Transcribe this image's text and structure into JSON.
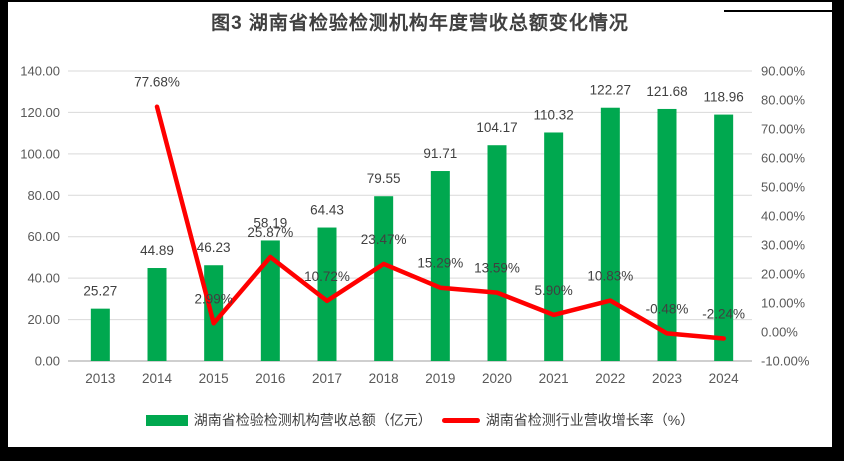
{
  "title": "图3 湖南省检验检测机构年度营收总额变化情况",
  "chart_data": {
    "type": "bar",
    "subtype": "combo-bar-line",
    "title": "图3 湖南省检验检测机构年度营收总额变化情况",
    "categories": [
      "2013",
      "2014",
      "2015",
      "2016",
      "2017",
      "2018",
      "2019",
      "2020",
      "2021",
      "2022",
      "2023",
      "2024"
    ],
    "series": [
      {
        "name": "湖南省检验检测机构营收总额（亿元）",
        "type": "bar",
        "axis": "left",
        "color": "#00A84F",
        "values": [
          25.27,
          44.89,
          46.23,
          58.19,
          64.43,
          79.55,
          91.71,
          104.17,
          110.32,
          122.27,
          121.68,
          118.96
        ],
        "labels": [
          "25.27",
          "44.89",
          "46.23",
          "58.19",
          "64.43",
          "79.55",
          "91.71",
          "104.17",
          "110.32",
          "122.27",
          "121.68",
          "118.96"
        ]
      },
      {
        "name": "湖南省检测行业营收增长率（%）",
        "type": "line",
        "axis": "right",
        "color": "#FF0000",
        "values": [
          null,
          77.68,
          2.99,
          25.87,
          10.72,
          23.47,
          15.29,
          13.59,
          5.9,
          10.83,
          -0.48,
          -2.24
        ],
        "labels": [
          "",
          "77.68%",
          "2.99%",
          "25.87%",
          "10.72%",
          "23.47%",
          "15.29%",
          "13.59%",
          "5.90%",
          "10.83%",
          "-0.48%",
          "-2.24%"
        ]
      }
    ],
    "left_axis": {
      "min": 0,
      "max": 140,
      "step": 20,
      "tick_labels": [
        "0.00",
        "20.00",
        "40.00",
        "60.00",
        "80.00",
        "100.00",
        "120.00",
        "140.00"
      ]
    },
    "right_axis": {
      "min": -10,
      "max": 90,
      "step": 10,
      "tick_labels": [
        "-10.00%",
        "0.00%",
        "10.00%",
        "20.00%",
        "30.00%",
        "40.00%",
        "50.00%",
        "60.00%",
        "70.00%",
        "80.00%",
        "90.00%"
      ]
    },
    "grid": true,
    "legend_position": "bottom"
  },
  "colors": {
    "bar": "#00A84F",
    "line": "#FF0000",
    "gridline": "#D9D9D9",
    "axis_line": "#BFBFBF",
    "tick_text": "#595959",
    "data_label": "#404040",
    "frame": "#000000"
  }
}
